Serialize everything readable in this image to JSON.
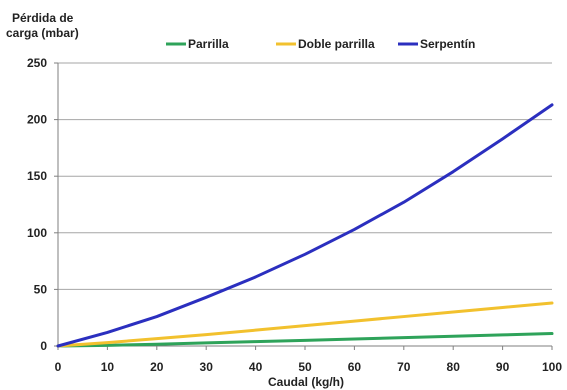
{
  "chart_data": {
    "type": "line",
    "ylabel_lines": [
      "Pérdida de",
      "carga (mbar)"
    ],
    "xlabel": "Caudal (kg/h)",
    "xlim": [
      0,
      100
    ],
    "ylim": [
      0,
      250
    ],
    "x_ticks": [
      "0",
      "10",
      "20",
      "30",
      "40",
      "50",
      "60",
      "70",
      "80",
      "90",
      "100"
    ],
    "y_ticks": [
      "0",
      "50",
      "100",
      "150",
      "200",
      "250"
    ],
    "grid": "horizontal",
    "legend_position": "top",
    "x": [
      0,
      10,
      20,
      30,
      40,
      50,
      60,
      70,
      80,
      90,
      100
    ],
    "series": [
      {
        "name": "Parrilla",
        "color": "#2ea35a",
        "values": [
          0,
          0.6,
          1.6,
          2.8,
          3.9,
          5.0,
          6.2,
          7.4,
          8.6,
          9.8,
          11
        ]
      },
      {
        "name": "Doble parrilla",
        "color": "#f2c12e",
        "values": [
          0,
          3,
          6.5,
          10,
          14,
          18,
          22,
          26,
          30,
          34,
          38
        ]
      },
      {
        "name": "Serpentín",
        "color": "#2b2fbf",
        "values": [
          0,
          12,
          26,
          43,
          61,
          81,
          103,
          127,
          154,
          183,
          213
        ]
      }
    ]
  }
}
